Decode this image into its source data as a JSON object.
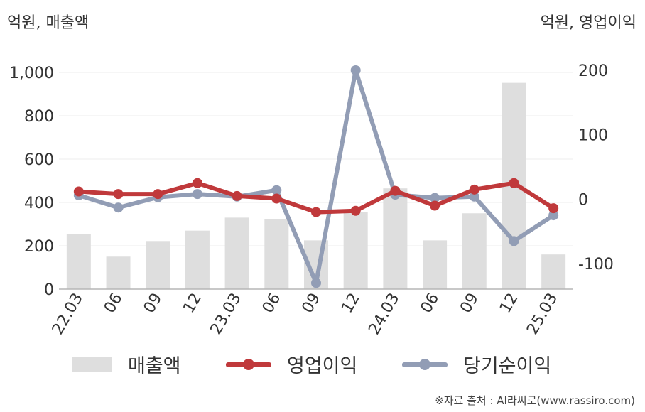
{
  "units": {
    "left": "억원, 매출액",
    "right": "억원, 영업이익"
  },
  "source": "※자료 출처 : AI라씨로(www.rassiro.com)",
  "legend": [
    {
      "label": "매출액",
      "kind": "bar",
      "color": "#dedede"
    },
    {
      "label": "영업이익",
      "kind": "line",
      "color": "#c0393b"
    },
    {
      "label": "당기순이익",
      "kind": "line",
      "color": "#929db5"
    }
  ],
  "chart_data": {
    "type": "bar",
    "categories": [
      "22.03",
      "06",
      "09",
      "12",
      "23.03",
      "06",
      "09",
      "12",
      "24.03",
      "06",
      "09",
      "12",
      "25.03"
    ],
    "y_left": {
      "ylim": [
        0,
        1000
      ],
      "ticks": [
        0,
        200,
        400,
        600,
        800,
        1000
      ],
      "tick_labels": [
        "0",
        "200",
        "400",
        "600",
        "800",
        "1,000"
      ]
    },
    "y_right": {
      "ylim": [
        -150,
        200
      ],
      "ticks": [
        -100,
        0,
        100,
        200
      ],
      "tick_labels": [
        "-100",
        "0",
        "100",
        "200"
      ]
    },
    "grid": true,
    "legend_position": "bottom",
    "series": [
      {
        "name": "매출액",
        "type": "bar",
        "axis": "left",
        "color": "#dedede",
        "values": [
          255,
          150,
          222,
          270,
          330,
          322,
          225,
          356,
          465,
          225,
          350,
          952,
          160
        ]
      },
      {
        "name": "영업이익",
        "type": "line",
        "axis": "right",
        "color": "#c0393b",
        "values": [
          12,
          8,
          8,
          25,
          5,
          1,
          -20,
          -18,
          13,
          -10,
          15,
          25,
          -14
        ]
      },
      {
        "name": "당기순이익",
        "type": "line",
        "axis": "right",
        "color": "#929db5",
        "values": [
          6,
          -13,
          3,
          8,
          4,
          14,
          -130,
          200,
          7,
          2,
          4,
          -65,
          -25
        ]
      }
    ]
  }
}
